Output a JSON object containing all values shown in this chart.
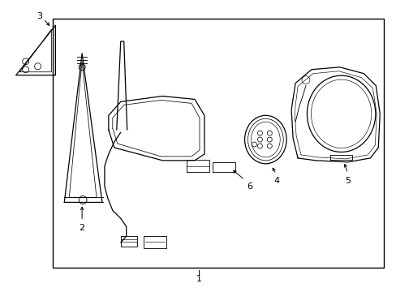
{
  "background_color": "#ffffff",
  "line_color": "#000000",
  "figsize": [
    4.89,
    3.6
  ],
  "dpi": 100,
  "border": [
    0.13,
    0.08,
    0.84,
    0.86
  ]
}
